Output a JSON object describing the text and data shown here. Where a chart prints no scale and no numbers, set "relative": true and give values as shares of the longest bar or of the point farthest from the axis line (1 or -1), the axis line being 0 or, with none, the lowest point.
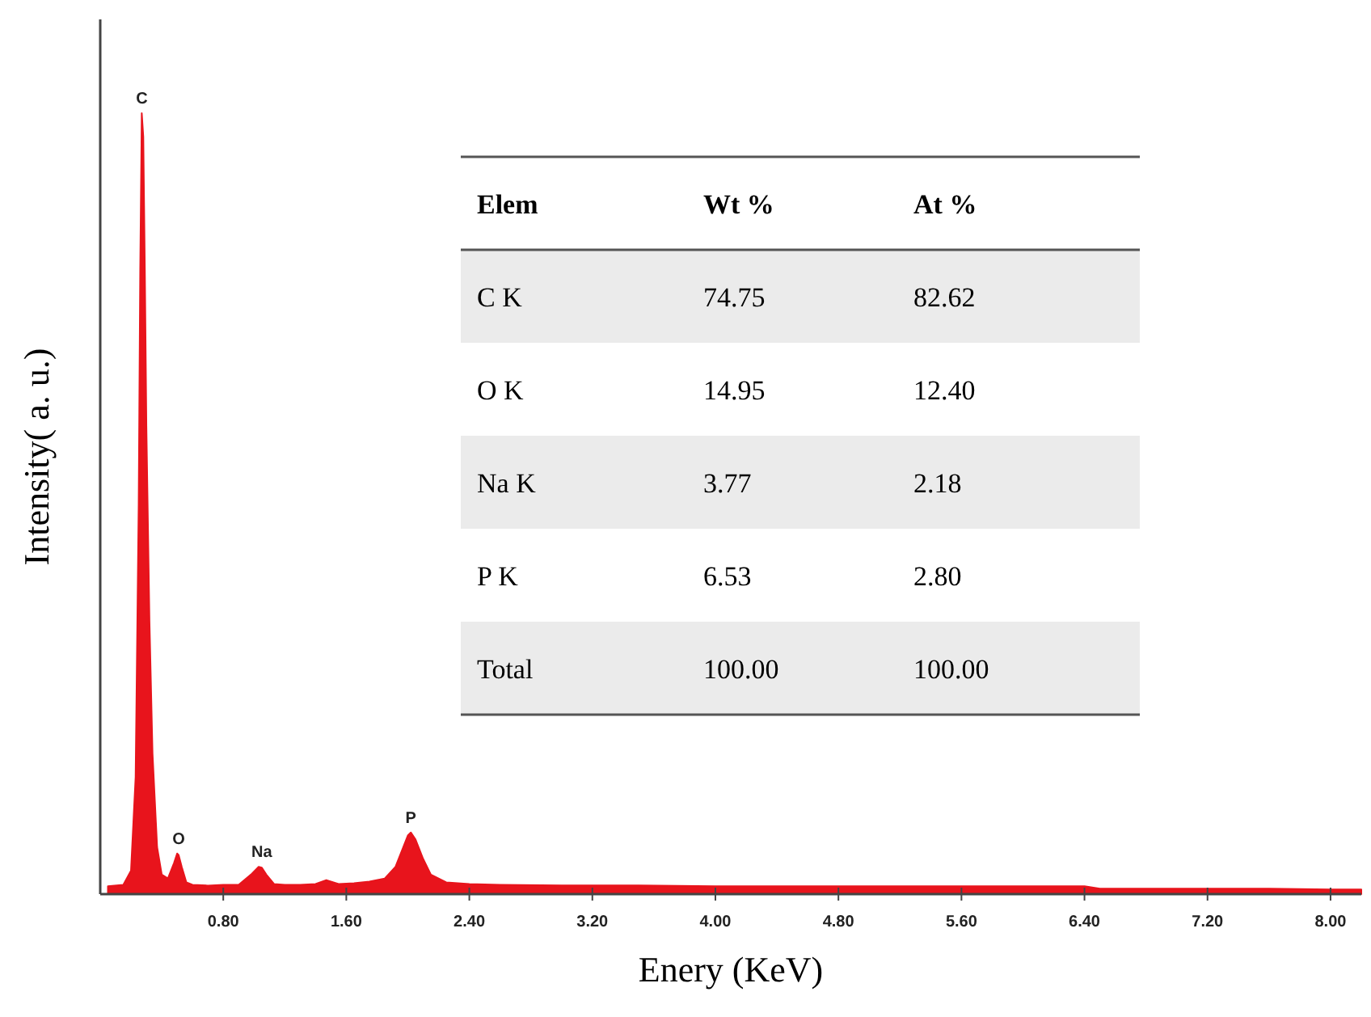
{
  "chart_data": [
    {
      "type": "area",
      "xlabel": "Enery (KeV)",
      "ylabel": "Intensity( a. u.)",
      "relative": true,
      "xlim": [
        0,
        8.2
      ],
      "xticks": [
        {
          "value": 0.8,
          "label": "0.80"
        },
        {
          "value": 1.6,
          "label": "1.60"
        },
        {
          "value": 2.4,
          "label": "2.40"
        },
        {
          "value": 3.2,
          "label": "3.20"
        },
        {
          "value": 4,
          "label": "4.00"
        },
        {
          "value": 4.8,
          "label": "4.80"
        },
        {
          "value": 5.6,
          "label": "5.60"
        },
        {
          "value": 6.4,
          "label": "6.40"
        },
        {
          "value": 7.2,
          "label": "7.20"
        },
        {
          "value": 8,
          "label": "8.00"
        }
      ],
      "x": [
        0.05,
        0.15,
        0.2,
        0.23,
        0.25,
        0.26,
        0.27,
        0.28,
        0.29,
        0.3,
        0.32,
        0.34,
        0.37,
        0.4,
        0.44,
        0.48,
        0.5,
        0.51,
        0.53,
        0.56,
        0.6,
        0.7,
        0.8,
        0.9,
        0.98,
        1.03,
        1.05,
        1.08,
        1.13,
        1.2,
        1.3,
        1.4,
        1.47,
        1.55,
        1.65,
        1.75,
        1.85,
        1.92,
        1.97,
        2.0,
        2.02,
        2.05,
        2.1,
        2.15,
        2.25,
        2.4,
        2.6,
        3.0,
        3.5,
        4.0,
        4.5,
        5.0,
        5.6,
        6.0,
        6.4,
        6.5,
        7.2,
        7.6,
        8.0,
        8.2
      ],
      "series": [
        {
          "color": "#e8141c",
          "values": [
            0.01,
            0.012,
            0.03,
            0.15,
            0.5,
            0.8,
            1.0,
            0.97,
            0.8,
            0.6,
            0.35,
            0.18,
            0.06,
            0.025,
            0.02,
            0.04,
            0.052,
            0.05,
            0.035,
            0.015,
            0.012,
            0.011,
            0.012,
            0.012,
            0.025,
            0.035,
            0.034,
            0.025,
            0.013,
            0.012,
            0.012,
            0.013,
            0.018,
            0.013,
            0.014,
            0.016,
            0.02,
            0.035,
            0.06,
            0.075,
            0.079,
            0.07,
            0.045,
            0.025,
            0.015,
            0.013,
            0.012,
            0.011,
            0.011,
            0.01,
            0.01,
            0.01,
            0.01,
            0.01,
            0.01,
            0.007,
            0.007,
            0.007,
            0.006,
            0.006
          ]
        }
      ],
      "annotations": [
        {
          "text": "C",
          "x": 0.27,
          "y": 1.0
        },
        {
          "text": "O",
          "x": 0.51,
          "y": 0.052
        },
        {
          "text": "Na",
          "x": 1.05,
          "y": 0.035
        },
        {
          "text": "P",
          "x": 2.02,
          "y": 0.079
        }
      ]
    },
    {
      "type": "other",
      "legend_title": "Elem",
      "categories": [
        "C K",
        "O K",
        "Na K",
        "P K",
        "Total"
      ],
      "data_labels": true,
      "series": [
        {
          "name": "Wt %",
          "values": [
            74.75,
            14.95,
            3.77,
            6.53,
            100
          ],
          "value_labels": [
            "74.75",
            "14.95",
            "3.77",
            "6.53",
            "100.00"
          ]
        },
        {
          "name": "At %",
          "values": [
            82.62,
            12.4,
            2.18,
            2.8,
            100
          ],
          "value_labels": [
            "82.62",
            "12.40",
            "2.18",
            "2.80",
            "100.00"
          ]
        }
      ]
    }
  ]
}
